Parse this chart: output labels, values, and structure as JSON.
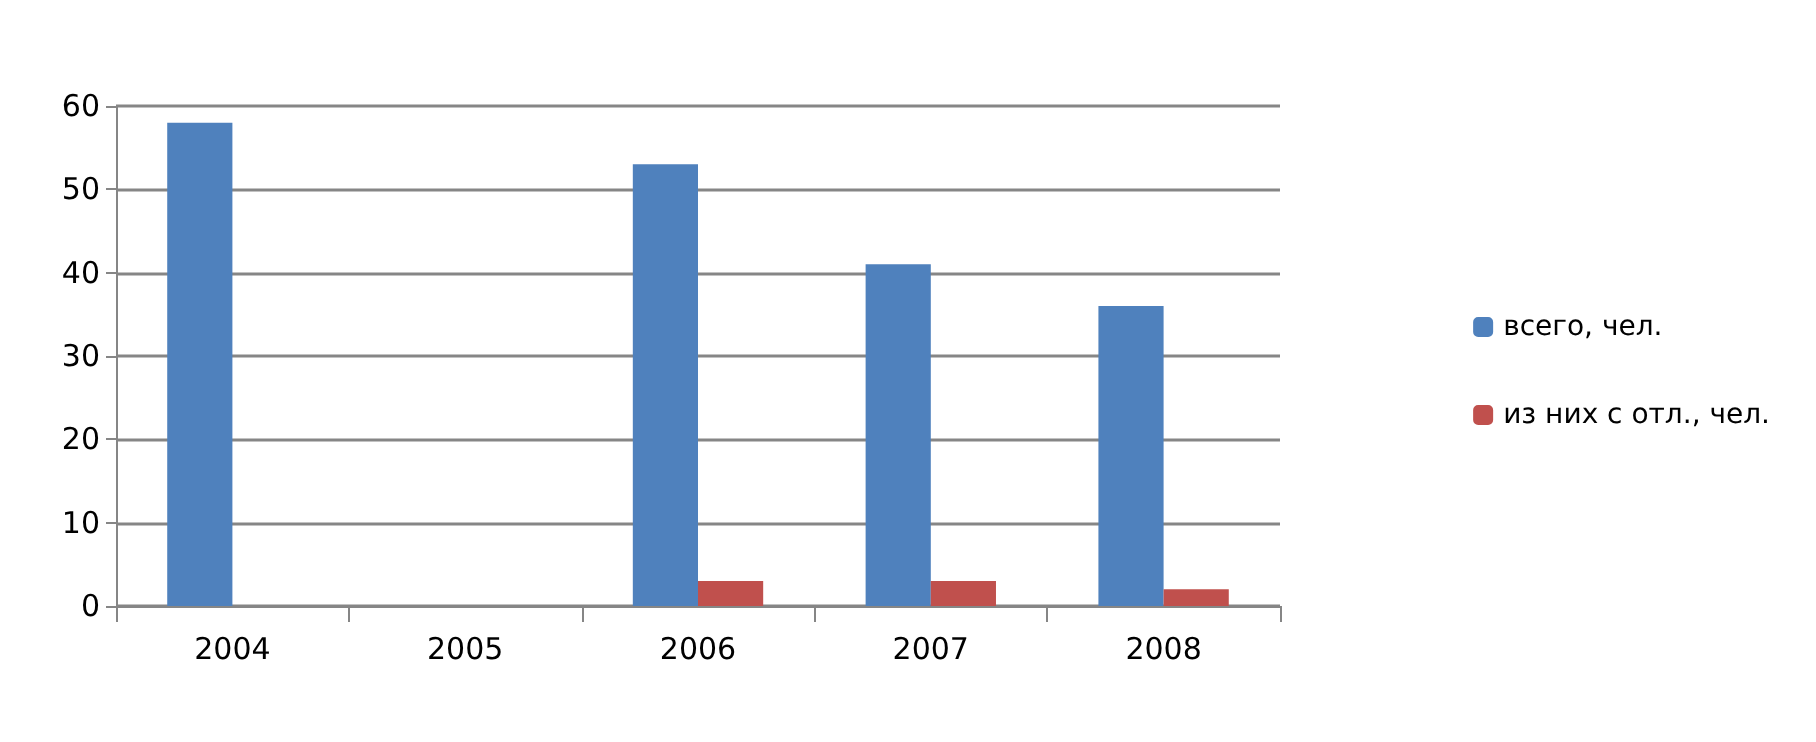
{
  "chart_data": {
    "type": "bar",
    "categories": [
      "2004",
      "2005",
      "2006",
      "2007",
      "2008"
    ],
    "series": [
      {
        "name": "всего, чел.",
        "color": "#4f81bd",
        "values": [
          58,
          0,
          53,
          41,
          36
        ]
      },
      {
        "name": "из них с отл., чел.",
        "color": "#c0504d",
        "values": [
          0,
          0,
          3,
          3,
          2
        ]
      }
    ],
    "ylim": [
      0,
      60
    ],
    "yticks": [
      0,
      10,
      20,
      30,
      40,
      50,
      60
    ],
    "grid": "y",
    "legend": "right"
  }
}
